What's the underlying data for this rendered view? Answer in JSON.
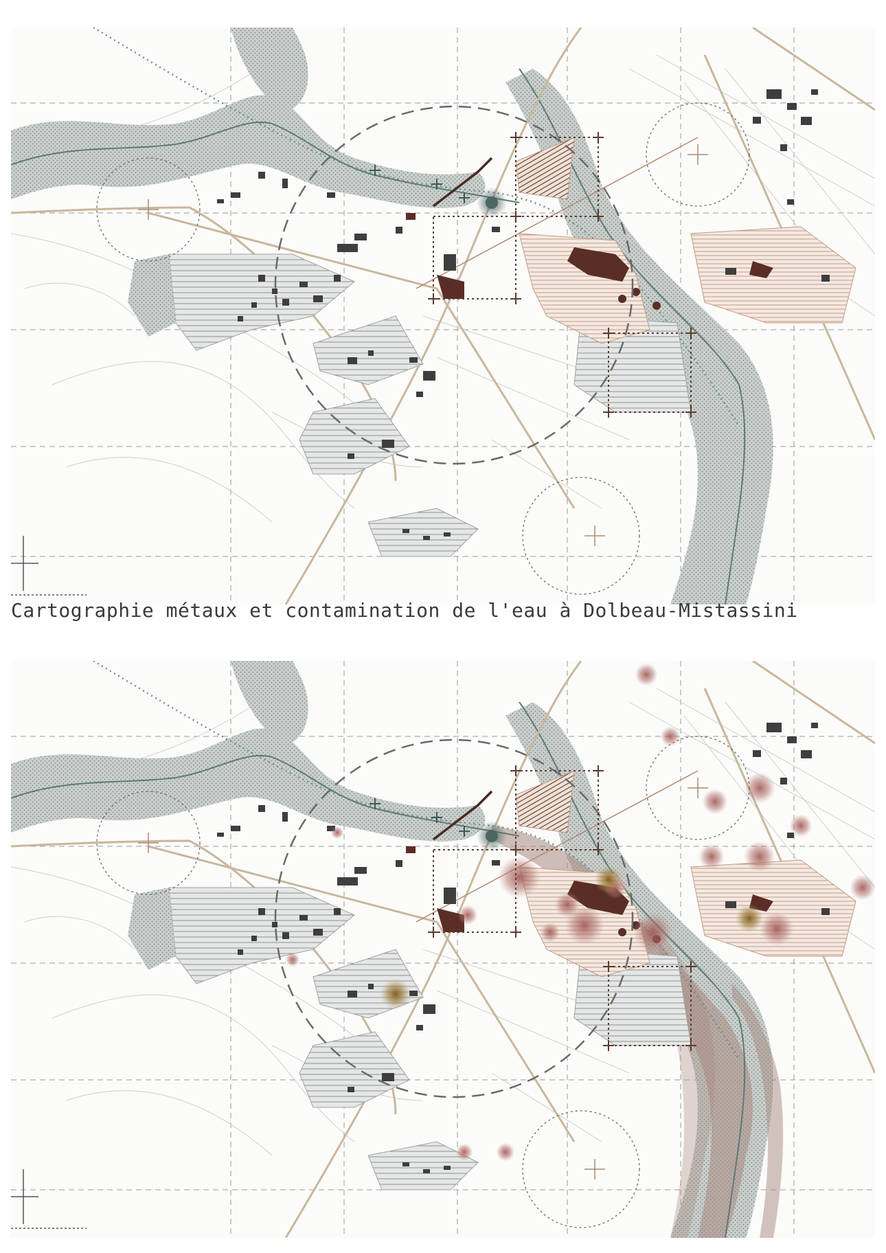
{
  "caption": "Cartographie métaux et contamination de l'eau à Dolbeau-Mistassini",
  "colors": {
    "river": "#c9cfcc",
    "river_line": "#5f7a76",
    "road_main": "#c9b79c",
    "building": "#3e3e3e",
    "building_highlight": "#5a2e26",
    "hatch_grey": "#8c918f",
    "hatch_brown": "#b88a74",
    "contamination_plume": "#a8897f",
    "metal_red": "#9a4f4a",
    "metal_ochre": "#8a6a1e",
    "grid_line": "#8a8a8a",
    "survey_line": "#5b3a30"
  },
  "maps": [
    {
      "name": "map-baseline",
      "layers": [
        "rivers",
        "roads",
        "hatched-zones",
        "buildings",
        "analysis-circles",
        "survey-frames"
      ]
    },
    {
      "name": "map-contamination",
      "layers": [
        "rivers",
        "roads",
        "hatched-zones",
        "buildings",
        "analysis-circles",
        "survey-frames",
        "contamination-plume",
        "metal-hotspots"
      ]
    }
  ]
}
